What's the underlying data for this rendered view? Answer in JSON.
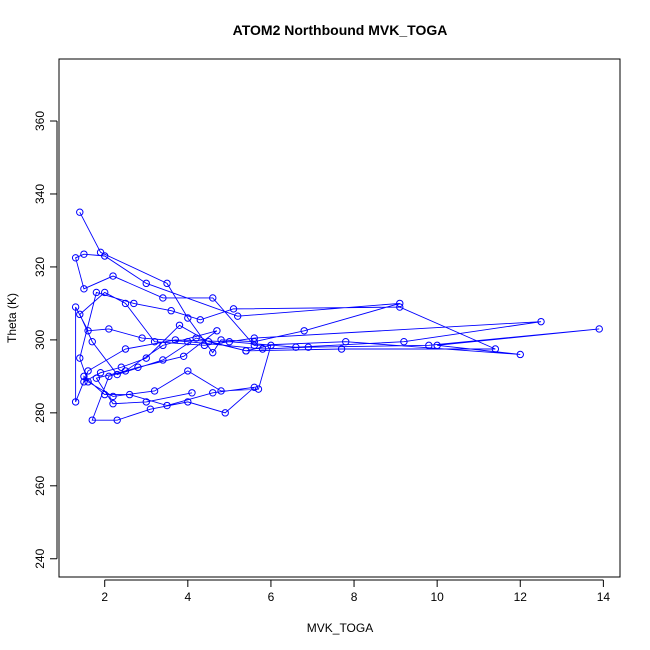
{
  "chart_data": {
    "type": "scatter",
    "title": "ATOM2 Northbound MVK_TOGA",
    "xlabel": "MVK_TOGA",
    "ylabel": "Theta (K)",
    "xlim": [
      0.9,
      14.4
    ],
    "ylim": [
      235,
      377
    ],
    "x_ticks": [
      2,
      4,
      6,
      8,
      10,
      12,
      14
    ],
    "y_ticks": [
      240,
      260,
      280,
      300,
      320,
      340,
      360
    ],
    "x_tick_labels": [
      "2",
      "4",
      "6",
      "8",
      "10",
      "12",
      "14"
    ],
    "y_tick_labels": [
      "240",
      "260",
      "280",
      "300",
      "320",
      "340",
      "360"
    ],
    "grid": false,
    "legend": "none",
    "marker": "open-circle",
    "connected": true,
    "color": "#0000ff",
    "series": [
      {
        "x": [
          1.4,
          1.9,
          3.5,
          4.0,
          4.6,
          4.8,
          5.6,
          6.8,
          9.1,
          5.2,
          3.0,
          2.0,
          1.5,
          1.3,
          1.5,
          2.2,
          3.4,
          4.6,
          5.6,
          7.8,
          12.0,
          10.0,
          13.9,
          9.8,
          6.9,
          5.8,
          4.0,
          2.9,
          2.1,
          1.6,
          1.3,
          1.3,
          1.6,
          2.5,
          3.7,
          5.0,
          6.6,
          9.2,
          12.5,
          5.6,
          4.4,
          3.2,
          2.5,
          2.0,
          1.4,
          1.7,
          2.3,
          3.4,
          4.2,
          5.4,
          7.7,
          11.4,
          9.1,
          5.1,
          4.3,
          3.6,
          2.7,
          1.8,
          1.4,
          1.6,
          2.2,
          3.2,
          4.0,
          4.8,
          5.7,
          6.0,
          5.4,
          4.5,
          3.8,
          3.0,
          2.4,
          1.9,
          1.5,
          1.5,
          2.0,
          2.6,
          3.5,
          4.6,
          5.6,
          4.9,
          4.0,
          3.1,
          2.3,
          1.7,
          2.1,
          2.8,
          3.9,
          4.7,
          3.4,
          2.5,
          1.8,
          2.2,
          3.0,
          4.1
        ],
        "y": [
          335,
          324,
          315.5,
          306,
          296.5,
          300,
          299.5,
          302.5,
          310,
          306.5,
          315.5,
          323,
          323.5,
          322.5,
          314,
          317.5,
          311.5,
          311.5,
          298.5,
          299.5,
          296,
          298.5,
          303,
          298.5,
          298,
          297.5,
          299.5,
          300.5,
          303,
          302.5,
          309,
          283,
          291.5,
          297.5,
          300,
          299.5,
          298,
          299.5,
          305,
          300.5,
          298.5,
          299.5,
          310,
          313,
          307,
          299.5,
          290.5,
          294.5,
          300.5,
          297,
          297.5,
          297.5,
          309,
          308.5,
          305.5,
          308,
          310,
          313,
          295,
          288.5,
          284.5,
          286,
          291.5,
          286,
          286.5,
          298.5,
          297,
          299.5,
          304,
          295,
          292.5,
          291,
          288.5,
          290,
          285,
          285,
          282,
          285.5,
          287,
          280,
          283,
          281,
          278,
          278,
          290,
          292.5,
          295.5,
          302.5,
          298.5,
          291.5,
          289.5,
          282.5,
          283,
          285.5
        ]
      }
    ]
  }
}
